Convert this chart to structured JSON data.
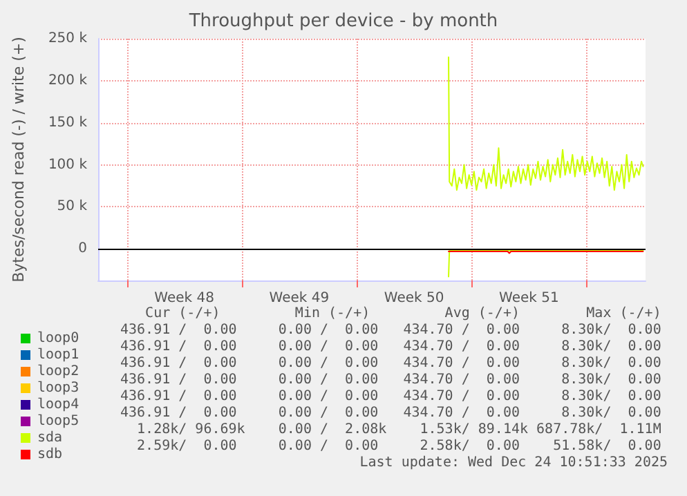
{
  "chart_data": {
    "type": "line",
    "title": "Throughput per device - by month",
    "ylabel": "Bytes/second read (-) / write (+)",
    "xlim": [
      "2025-11-21T06:00",
      "2025-12-24T14:24"
    ],
    "xticks": [
      {
        "value": "2025-11-23T00:00",
        "label": null
      },
      {
        "value": "2025-11-26T12:00",
        "label": "Week 48"
      },
      {
        "value": "2025-11-30T00:00",
        "label": null
      },
      {
        "value": "2025-12-03T12:00",
        "label": "Week 49"
      },
      {
        "value": "2025-12-07T00:00",
        "label": null
      },
      {
        "value": "2025-12-10T12:00",
        "label": "Week 50"
      },
      {
        "value": "2025-12-14T00:00",
        "label": null
      },
      {
        "value": "2025-12-17T12:00",
        "label": "Week 51"
      },
      {
        "value": "2025-12-21T00:00",
        "label": null
      }
    ],
    "ylim": [
      -37500,
      250000
    ],
    "yticks": [
      {
        "value": 0,
        "label": "0"
      },
      {
        "value": 50000,
        "label": "50 k"
      },
      {
        "value": 100000,
        "label": "100 k"
      },
      {
        "value": 150000,
        "label": "150 k"
      },
      {
        "value": 200000,
        "label": "200 k"
      },
      {
        "value": 250000,
        "label": "250 k"
      }
    ],
    "grid": true,
    "legend": "bottom left",
    "marker": "none",
    "line_style": "solid",
    "series": [
      {
        "name": "loop0",
        "color": "#00cc00"
      },
      {
        "name": "loop1",
        "color": "#0066b3"
      },
      {
        "name": "loop2",
        "color": "#ff8000"
      },
      {
        "name": "loop3",
        "color": "#ffcc00"
      },
      {
        "name": "loop4",
        "color": "#330099"
      },
      {
        "name": "loop5",
        "color": "#990099"
      },
      {
        "name": "sda",
        "color": "#ccff00",
        "x": [
          "2025-12-12T14:24",
          "2025-12-12T15:36",
          "2025-12-12T19:12",
          "2025-12-12T22:48",
          "2025-12-13T02:24",
          "2025-12-13T06:00",
          "2025-12-13T09:36",
          "2025-12-13T13:12",
          "2025-12-13T16:48",
          "2025-12-13T20:24",
          "2025-12-14T00:00",
          "2025-12-14T03:36",
          "2025-12-14T07:12",
          "2025-12-14T10:48",
          "2025-12-14T14:24",
          "2025-12-14T18:00",
          "2025-12-14T21:36",
          "2025-12-15T01:12",
          "2025-12-15T04:48",
          "2025-12-15T08:24",
          "2025-12-15T12:00",
          "2025-12-15T15:36",
          "2025-12-15T19:12",
          "2025-12-15T22:48",
          "2025-12-16T02:24",
          "2025-12-16T06:00",
          "2025-12-16T09:36",
          "2025-12-16T13:12",
          "2025-12-16T16:48",
          "2025-12-16T20:24",
          "2025-12-17T00:00",
          "2025-12-17T03:36",
          "2025-12-17T07:12",
          "2025-12-17T10:48",
          "2025-12-17T14:24",
          "2025-12-17T18:00",
          "2025-12-17T21:36",
          "2025-12-18T01:12",
          "2025-12-18T04:48",
          "2025-12-18T08:24",
          "2025-12-18T12:00",
          "2025-12-18T15:36",
          "2025-12-18T19:12",
          "2025-12-18T22:48",
          "2025-12-19T02:24",
          "2025-12-19T06:00",
          "2025-12-19T09:36",
          "2025-12-19T13:12",
          "2025-12-19T16:48",
          "2025-12-19T20:24",
          "2025-12-20T00:00",
          "2025-12-20T03:36",
          "2025-12-20T07:12",
          "2025-12-20T10:48",
          "2025-12-20T14:24",
          "2025-12-20T18:00",
          "2025-12-20T21:36",
          "2025-12-21T01:12",
          "2025-12-21T04:48",
          "2025-12-21T08:24",
          "2025-12-21T12:00",
          "2025-12-21T15:36",
          "2025-12-21T19:12",
          "2025-12-21T22:48",
          "2025-12-22T02:24",
          "2025-12-22T06:00",
          "2025-12-22T09:36",
          "2025-12-22T13:12",
          "2025-12-22T16:48",
          "2025-12-22T20:24",
          "2025-12-23T00:00",
          "2025-12-23T03:36",
          "2025-12-23T07:12",
          "2025-12-23T10:48",
          "2025-12-23T14:24",
          "2025-12-23T18:00",
          "2025-12-23T21:36",
          "2025-12-24T01:12",
          "2025-12-24T04:48",
          "2025-12-24T08:24",
          "2025-12-24T10:48"
        ],
        "values": [
          228000,
          80000,
          75000,
          95000,
          70000,
          85000,
          78000,
          100000,
          72000,
          88000,
          76000,
          92000,
          70000,
          85000,
          80000,
          95000,
          72000,
          90000,
          78000,
          100000,
          75000,
          120000,
          72000,
          88000,
          78000,
          95000,
          74000,
          92000,
          80000,
          98000,
          78000,
          95000,
          82000,
          100000,
          76000,
          95000,
          84000,
          104000,
          82000,
          98000,
          86000,
          106000,
          80000,
          100000,
          88000,
          108000,
          85000,
          118000,
          88000,
          104000,
          90000,
          112000,
          86000,
          106000,
          92000,
          110000,
          88000,
          104000,
          92000,
          110000,
          86000,
          102000,
          90000,
          108000,
          85000,
          104000,
          75000,
          98000,
          70000,
          92000,
          80000,
          100000,
          72000,
          112000,
          80000,
          104000,
          85000,
          96000,
          88000,
          104000,
          98000
        ]
      },
      {
        "color": "#ccff00",
        "x": [
          "2025-12-12T14:24",
          "2025-12-12T15:36",
          "2025-12-24T10:48"
        ],
        "values": [
          -33000,
          -2000,
          -2000
        ]
      },
      {
        "name": "sdb",
        "color": "#ff0000",
        "x": [
          "2025-12-12T14:24",
          "2025-12-16T04:48",
          "2025-12-16T07:12",
          "2025-12-16T09:36",
          "2025-12-24T10:48"
        ],
        "values": [
          -3000,
          -3000,
          -5000,
          -3000,
          -3000
        ]
      }
    ],
    "annotations": [
      "   Cur (-/+)         Min (-/+)         Avg (-/+)        Max (-/+)",
      "436.91 /  0.00     0.00 /  0.00   434.70 /  0.00     8.30k/  0.00",
      "436.91 /  0.00     0.00 /  0.00   434.70 /  0.00     8.30k/  0.00",
      "436.91 /  0.00     0.00 /  0.00   434.70 /  0.00     8.30k/  0.00",
      "436.91 /  0.00     0.00 /  0.00   434.70 /  0.00     8.30k/  0.00",
      "436.91 /  0.00     0.00 /  0.00   434.70 /  0.00     8.30k/  0.00",
      "436.91 /  0.00     0.00 /  0.00   434.70 /  0.00     8.30k/  0.00",
      "  1.28k/ 96.69k    0.00 /  2.08k    1.53k/ 89.14k 687.78k/  1.11M",
      "  2.59k/  0.00     0.00 /  0.00     2.58k/  0.00    51.58k/  0.00",
      "Last update: Wed Dec 24 10:51:33 2025"
    ]
  }
}
